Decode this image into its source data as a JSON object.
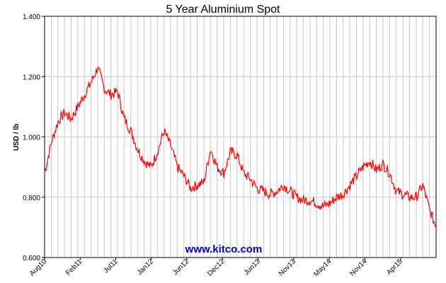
{
  "chart_data": {
    "type": "line",
    "title": "5 Year Aluminium Spot",
    "xlabel": "",
    "ylabel": "USD / lb",
    "watermark": "www.kitco.com",
    "ylim": [
      0.6,
      1.4
    ],
    "y_ticks": [
      "0.600",
      "0.800",
      "1.000",
      "1.200",
      "1.400"
    ],
    "x_ticks": [
      "Aug10",
      "Feb11",
      "Jul11",
      "Jan12",
      "Jun12",
      "Dec12",
      "Jun13",
      "Nov13",
      "May14",
      "Nov14",
      "Apr15"
    ],
    "grid": true,
    "line_color": "#ff0000",
    "series": [
      {
        "name": "",
        "x": [
          "2010-08",
          "2010-09",
          "2010-10",
          "2010-11",
          "2010-12",
          "2011-01",
          "2011-02",
          "2011-03",
          "2011-04",
          "2011-05",
          "2011-06",
          "2011-07",
          "2011-08",
          "2011-09",
          "2011-10",
          "2011-11",
          "2011-12",
          "2012-01",
          "2012-02",
          "2012-03",
          "2012-04",
          "2012-05",
          "2012-06",
          "2012-07",
          "2012-08",
          "2012-09",
          "2012-10",
          "2012-11",
          "2012-12",
          "2013-01",
          "2013-02",
          "2013-03",
          "2013-04",
          "2013-05",
          "2013-06",
          "2013-07",
          "2013-08",
          "2013-09",
          "2013-10",
          "2013-11",
          "2013-12",
          "2014-01",
          "2014-02",
          "2014-03",
          "2014-04",
          "2014-05",
          "2014-06",
          "2014-07",
          "2014-08",
          "2014-09",
          "2014-10",
          "2014-11",
          "2014-12",
          "2015-01",
          "2015-02",
          "2015-03",
          "2015-04",
          "2015-05",
          "2015-06",
          "2015-07"
        ],
        "values": [
          0.88,
          0.98,
          1.05,
          1.08,
          1.06,
          1.1,
          1.14,
          1.18,
          1.23,
          1.16,
          1.14,
          1.15,
          1.06,
          1.02,
          0.96,
          0.92,
          0.9,
          0.95,
          1.02,
          0.97,
          0.9,
          0.87,
          0.83,
          0.84,
          0.85,
          0.96,
          0.9,
          0.88,
          0.95,
          0.94,
          0.88,
          0.86,
          0.83,
          0.82,
          0.81,
          0.82,
          0.84,
          0.82,
          0.8,
          0.79,
          0.79,
          0.78,
          0.77,
          0.78,
          0.8,
          0.81,
          0.84,
          0.87,
          0.9,
          0.92,
          0.89,
          0.91,
          0.88,
          0.82,
          0.81,
          0.8,
          0.8,
          0.84,
          0.76,
          0.7
        ]
      }
    ]
  }
}
